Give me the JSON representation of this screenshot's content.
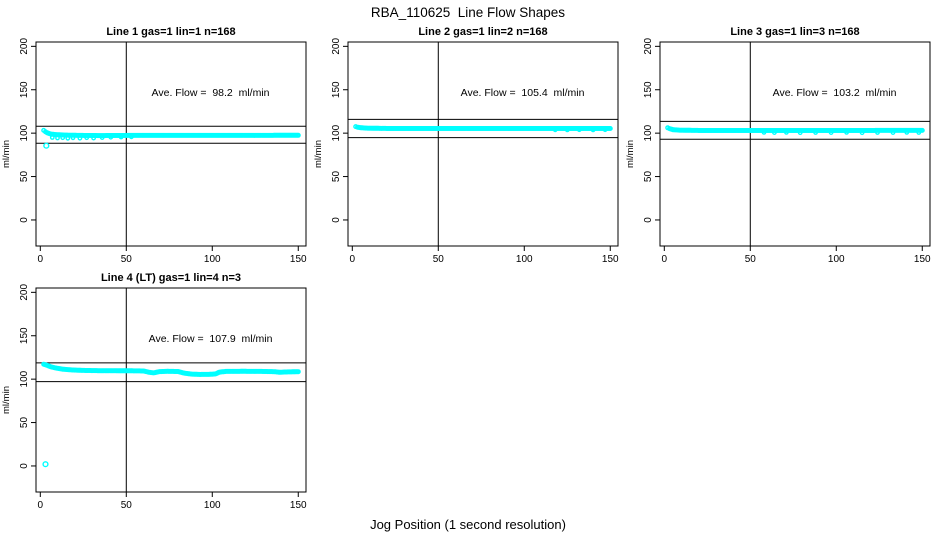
{
  "figure": {
    "title": "RBA_110625  Line Flow Shapes",
    "xlabel": "Jog Position (1 second resolution)"
  },
  "chart_data": {
    "type": "scatter",
    "title": "RBA_110625  Line Flow Shapes",
    "xlabel": "Jog Position (1 second resolution)",
    "ylabel": "ml/min",
    "point_color": "#00ffff",
    "axis_color": "#000000",
    "xlim": [
      -2.5,
      154.5
    ],
    "ylim": [
      -30,
      205
    ],
    "x_ticks": [
      0,
      50,
      100,
      150
    ],
    "y_ticks": [
      0,
      50,
      100,
      150,
      200
    ],
    "vline_x": 50,
    "grid": false,
    "panels": [
      {
        "title": "Line 1 gas=1 lin=1 n=168",
        "ave_flow": 98.2,
        "annotation": "Ave. Flow =  98.2  ml/min",
        "hlines": [
          108.0,
          88.4
        ],
        "band": [
          [
            2,
            103.2
          ],
          [
            3,
            101.6
          ],
          [
            4,
            100.4
          ],
          [
            6,
            99.0
          ],
          [
            9,
            98.3
          ],
          [
            14,
            97.8
          ],
          [
            22,
            97.4
          ],
          [
            35,
            97.2
          ],
          [
            55,
            97.4
          ],
          [
            80,
            97.4
          ],
          [
            110,
            97.4
          ],
          [
            150,
            97.5
          ]
        ],
        "extra_points": [
          [
            7,
            95.0
          ],
          [
            10,
            94.4
          ],
          [
            13,
            94.8
          ],
          [
            16,
            94.1
          ],
          [
            19,
            94.6
          ],
          [
            23,
            94.2
          ],
          [
            27,
            94.7
          ],
          [
            31,
            94.3
          ],
          [
            36,
            94.9
          ],
          [
            41,
            95.3
          ],
          [
            47,
            95.6
          ],
          [
            53,
            95.8
          ]
        ],
        "outliers": [
          [
            3.5,
            85.5
          ]
        ]
      },
      {
        "title": "Line 2 gas=1 lin=2 n=168",
        "ave_flow": 105.4,
        "annotation": "Ave. Flow =  105.4  ml/min",
        "hlines": [
          115.9,
          94.9
        ],
        "band": [
          [
            2,
            107.6
          ],
          [
            3,
            106.9
          ],
          [
            5,
            106.2
          ],
          [
            9,
            105.7
          ],
          [
            20,
            105.4
          ],
          [
            50,
            105.3
          ],
          [
            90,
            105.3
          ],
          [
            120,
            105.4
          ],
          [
            150,
            105.4
          ]
        ],
        "extra_points": [
          [
            118,
            103.9
          ],
          [
            125,
            103.7
          ],
          [
            132,
            104.0
          ],
          [
            140,
            103.8
          ],
          [
            147,
            104.0
          ]
        ],
        "outliers": []
      },
      {
        "title": "Line 3 gas=1 lin=3 n=168",
        "ave_flow": 103.2,
        "annotation": "Ave. Flow =  103.2  ml/min",
        "hlines": [
          113.5,
          92.9
        ],
        "band": [
          [
            2,
            106.2
          ],
          [
            3,
            105.2
          ],
          [
            5,
            104.0
          ],
          [
            9,
            103.4
          ],
          [
            20,
            103.1
          ],
          [
            50,
            103.0
          ],
          [
            90,
            103.0
          ],
          [
            120,
            103.1
          ],
          [
            150,
            103.2
          ]
        ],
        "extra_points": [
          [
            58,
            100.9
          ],
          [
            64,
            100.6
          ],
          [
            71,
            100.9
          ],
          [
            79,
            100.5
          ],
          [
            88,
            100.8
          ],
          [
            97,
            100.6
          ],
          [
            106,
            100.9
          ],
          [
            115,
            100.5
          ],
          [
            124,
            100.8
          ],
          [
            133,
            100.6
          ],
          [
            141,
            100.9
          ],
          [
            148,
            100.7
          ]
        ],
        "outliers": []
      },
      {
        "title": "Line 4 (LT) gas=1 lin=4 n=3",
        "ave_flow": 107.9,
        "annotation": "Ave. Flow =  107.9  ml/min",
        "hlines": [
          118.7,
          97.1
        ],
        "band": [
          [
            2,
            117.2
          ],
          [
            4,
            115.8
          ],
          [
            6,
            114.3
          ],
          [
            9,
            112.8
          ],
          [
            13,
            111.5
          ],
          [
            18,
            110.6
          ],
          [
            24,
            110.1
          ],
          [
            32,
            109.8
          ],
          [
            42,
            109.7
          ],
          [
            52,
            109.6
          ],
          [
            60,
            109.4
          ],
          [
            63,
            108.0
          ],
          [
            66,
            107.2
          ],
          [
            69,
            108.6
          ],
          [
            74,
            109.0
          ],
          [
            80,
            108.8
          ],
          [
            84,
            106.8
          ],
          [
            88,
            105.8
          ],
          [
            93,
            105.4
          ],
          [
            98,
            105.5
          ],
          [
            102,
            106.0
          ],
          [
            104,
            108.0
          ],
          [
            108,
            108.9
          ],
          [
            118,
            109.0
          ],
          [
            128,
            108.9
          ],
          [
            136,
            108.6
          ],
          [
            139,
            107.9
          ],
          [
            142,
            108.2
          ],
          [
            146,
            108.4
          ],
          [
            150,
            108.6
          ]
        ],
        "extra_points": [],
        "outliers": [
          [
            3,
            2
          ]
        ]
      }
    ]
  }
}
